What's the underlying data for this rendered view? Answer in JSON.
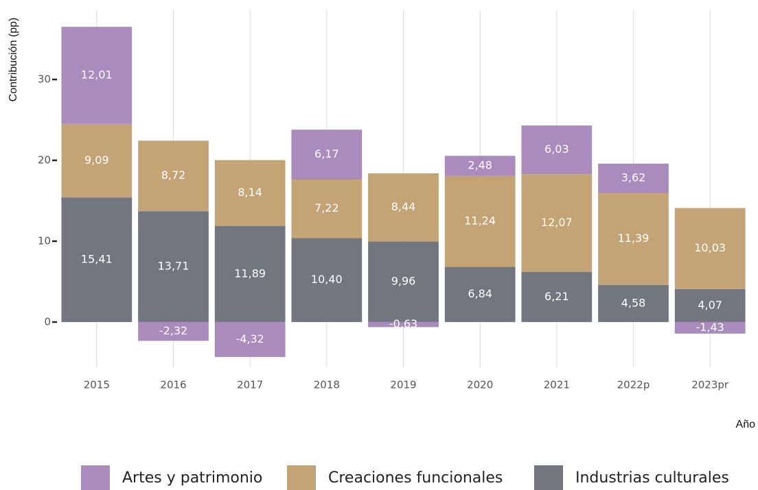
{
  "chart_data": {
    "type": "stacked_bar",
    "ylabel": "Contribución (pp)",
    "xlabel": "Año",
    "categories": [
      "2015",
      "2016",
      "2017",
      "2018",
      "2019",
      "2020",
      "2021",
      "2022p",
      "2023pr"
    ],
    "series": [
      {
        "name": "Industrias culturales",
        "color": "#72767f",
        "values": [
          15.41,
          13.71,
          11.89,
          10.4,
          9.96,
          6.84,
          6.21,
          4.58,
          4.07
        ],
        "value_labels": [
          "15,41",
          "13,71",
          "11,89",
          "10,40",
          "9,96",
          "6,84",
          "6,21",
          "4,58",
          "4,07"
        ]
      },
      {
        "name": "Creaciones funcionales",
        "color": "#c4a474",
        "values": [
          9.09,
          8.72,
          8.14,
          7.22,
          8.44,
          11.24,
          12.07,
          11.39,
          10.03
        ],
        "value_labels": [
          "9,09",
          "8,72",
          "8,14",
          "7,22",
          "8,44",
          "11,24",
          "12,07",
          "11,39",
          "10,03"
        ]
      },
      {
        "name": "Artes y patrimonio",
        "color": "#a98bbd",
        "values": [
          12.01,
          -2.32,
          -4.32,
          6.17,
          -0.63,
          2.48,
          6.03,
          3.62,
          -1.43
        ],
        "value_labels": [
          "12,01",
          "-2,32",
          "-4,32",
          "6,17",
          "-0,63",
          "2,48",
          "6,03",
          "3,62",
          "-1,43"
        ]
      }
    ],
    "legend_order": [
      2,
      1,
      0
    ],
    "ylim": [
      -5.6,
      38.6
    ],
    "yticks": [
      0,
      10,
      20,
      30
    ],
    "grid": "x"
  }
}
